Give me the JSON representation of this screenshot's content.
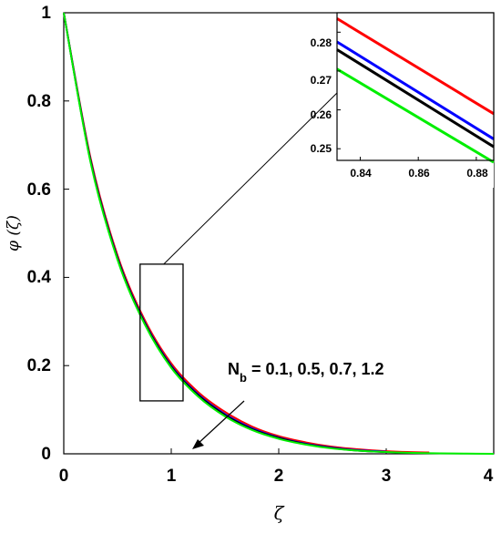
{
  "chart_data": [
    {
      "type": "line",
      "xlabel": "ζ",
      "ylabel": "φ (ζ)",
      "xlim": [
        0,
        4
      ],
      "ylim": [
        0,
        1
      ],
      "xticks": [
        "0",
        "1",
        "2",
        "3",
        "4"
      ],
      "yticks": [
        "0",
        "0.2",
        "0.4",
        "0.6",
        "0.8",
        "1"
      ],
      "grid": false,
      "annotation": {
        "main": "N",
        "sub": "b",
        "rest": " = 0.1, 0.5, 0.7, 1.2"
      },
      "zoom_box": {
        "x": [
          0.71,
          1.11
        ],
        "y": [
          0.12,
          0.43
        ]
      },
      "series": [
        {
          "color": "#ff0000",
          "x": [
            0,
            0.25,
            0.5,
            0.75,
            1.0,
            1.25,
            1.5,
            1.75,
            2.0,
            2.25,
            2.5,
            2.75,
            3.0,
            3.2,
            3.4
          ],
          "y": [
            1,
            0.67,
            0.45,
            0.305,
            0.205,
            0.14,
            0.095,
            0.062,
            0.04,
            0.026,
            0.016,
            0.01,
            0.006,
            0.004,
            0.003
          ]
        },
        {
          "color": "#0000ff",
          "x": [
            0,
            0.25,
            0.5,
            0.75,
            1.0,
            1.25,
            1.5,
            1.75,
            2.0,
            2.25,
            2.5,
            2.75,
            3.0
          ],
          "y": [
            1,
            0.665,
            0.445,
            0.3,
            0.2,
            0.135,
            0.09,
            0.058,
            0.037,
            0.023,
            0.014,
            0.008,
            0.005
          ]
        },
        {
          "color": "#000000",
          "x": [
            0,
            0.25,
            0.5,
            0.75,
            1.0,
            1.25,
            1.5,
            1.75,
            2.0,
            2.25,
            2.5,
            2.75,
            3.0
          ],
          "y": [
            1,
            0.663,
            0.443,
            0.298,
            0.198,
            0.133,
            0.088,
            0.056,
            0.036,
            0.022,
            0.013,
            0.007,
            0.004
          ]
        },
        {
          "color": "#00ee00",
          "x": [
            0,
            0.25,
            0.5,
            0.75,
            1.0,
            1.25,
            1.5,
            1.75,
            2.0,
            2.25,
            2.5,
            2.75,
            3.0,
            3.25,
            3.5,
            3.75,
            4.0
          ],
          "y": [
            1,
            0.66,
            0.44,
            0.295,
            0.195,
            0.13,
            0.085,
            0.054,
            0.034,
            0.021,
            0.012,
            0.007,
            0.004,
            0.002,
            0.001,
            0.0005,
            0
          ]
        }
      ]
    },
    {
      "type": "line",
      "xlim": [
        0.832,
        0.886
      ],
      "ylim": [
        0.247,
        0.285
      ],
      "xticks": [
        "0.84",
        "0.86",
        "0.88"
      ],
      "yticks": [
        "0.25",
        "0.26",
        "0.27",
        "0.28"
      ],
      "grid": false,
      "series": [
        {
          "color": "#ff0000",
          "x": [
            0.832,
            0.886
          ],
          "y": [
            0.2835,
            0.259
          ]
        },
        {
          "color": "#0000ff",
          "x": [
            0.832,
            0.886
          ],
          "y": [
            0.2775,
            0.2525
          ]
        },
        {
          "color": "#000000",
          "x": [
            0.832,
            0.886
          ],
          "y": [
            0.2755,
            0.2505
          ]
        },
        {
          "color": "#00ee00",
          "x": [
            0.832,
            0.886
          ],
          "y": [
            0.2705,
            0.2465
          ]
        }
      ]
    }
  ]
}
